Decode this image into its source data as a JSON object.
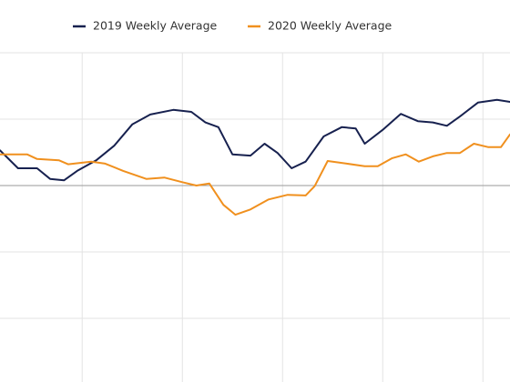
{
  "chart_data": {
    "type": "line",
    "legend": "top",
    "grid": true,
    "xlim": [
      -8.2,
      42.7
    ],
    "xticks": [
      0,
      10,
      20,
      30,
      40
    ],
    "ylim": [
      -3,
      2
    ],
    "yticks": [
      -2,
      -1,
      0,
      1,
      2
    ],
    "series": [
      {
        "name": "2019 Weekly Average",
        "color": "#17214f",
        "x": [
          -8.2,
          -6.4,
          -4.5,
          -3.2,
          -1.8,
          -0.5,
          1.4,
          3.2,
          5.0,
          6.8,
          9.1,
          10.9,
          12.3,
          13.6,
          15.0,
          16.8,
          18.2,
          19.5,
          20.9,
          22.3,
          24.1,
          25.9,
          27.3,
          28.2,
          30.0,
          31.8,
          33.5,
          35.0,
          36.4,
          37.7,
          39.5,
          41.4,
          42.7
        ],
        "values": [
          0.53,
          0.26,
          0.26,
          0.1,
          0.08,
          0.22,
          0.38,
          0.6,
          0.92,
          1.07,
          1.14,
          1.11,
          0.95,
          0.88,
          0.47,
          0.45,
          0.63,
          0.49,
          0.26,
          0.36,
          0.74,
          0.88,
          0.86,
          0.63,
          0.84,
          1.08,
          0.97,
          0.95,
          0.9,
          1.04,
          1.25,
          1.29,
          1.26
        ]
      },
      {
        "name": "2020 Weekly Average",
        "color": "#f0901e",
        "x": [
          -8.2,
          -5.5,
          -4.5,
          -2.3,
          -1.4,
          0.9,
          2.3,
          4.1,
          6.4,
          8.2,
          10.0,
          11.4,
          12.7,
          14.1,
          15.3,
          16.8,
          18.6,
          20.5,
          22.3,
          23.2,
          24.5,
          26.4,
          28.2,
          29.5,
          30.9,
          32.3,
          33.6,
          35.0,
          36.4,
          37.7,
          39.1,
          40.5,
          41.8,
          42.7
        ],
        "values": [
          0.47,
          0.47,
          0.4,
          0.38,
          0.32,
          0.36,
          0.33,
          0.22,
          0.1,
          0.12,
          0.05,
          0,
          0.03,
          -0.29,
          -0.44,
          -0.36,
          -0.21,
          -0.14,
          -0.15,
          -0.01,
          0.37,
          0.33,
          0.29,
          0.29,
          0.41,
          0.47,
          0.36,
          0.44,
          0.49,
          0.49,
          0.63,
          0.58,
          0.58,
          0.77
        ]
      }
    ]
  }
}
